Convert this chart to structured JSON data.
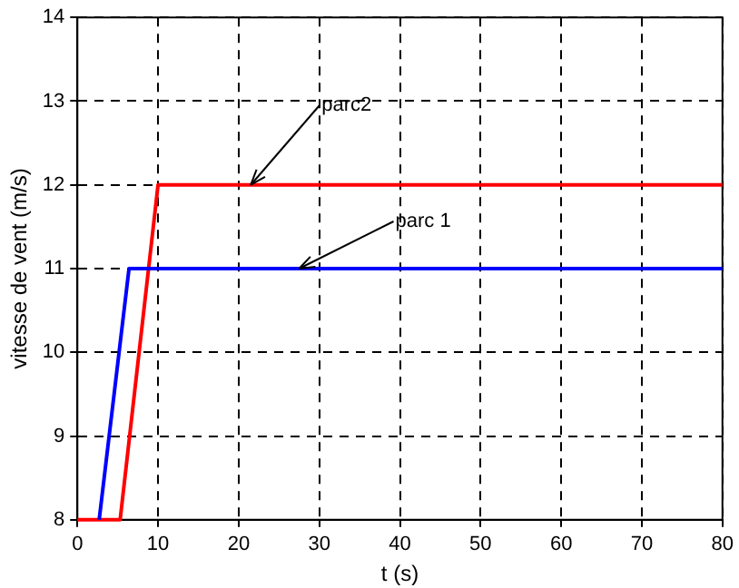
{
  "chart_data": {
    "type": "line",
    "xlabel": "t (s)",
    "ylabel": "vitesse de vent (m/s)",
    "series": [
      {
        "color": "#0000ff",
        "x": [
          2.7,
          6.4,
          80
        ],
        "values": [
          8,
          11,
          11
        ]
      },
      {
        "color": "#ff0000",
        "x": [
          0,
          5.3,
          10,
          80
        ],
        "values": [
          8,
          8,
          12,
          12
        ]
      }
    ],
    "annotations": [
      {
        "text": "parc2",
        "x": 21.5,
        "y": 12
      },
      {
        "text": "parc 1",
        "x": 27.5,
        "y": 11
      }
    ],
    "xlim": [
      0,
      80
    ],
    "xticks": [
      0,
      10,
      20,
      30,
      40,
      50,
      60,
      70,
      80
    ],
    "ylim": [
      8,
      14
    ],
    "yticks": [
      8,
      9,
      10,
      11,
      12,
      13,
      14
    ],
    "grid": true,
    "legend": false,
    "marker": "none",
    "line_style": "solid"
  }
}
